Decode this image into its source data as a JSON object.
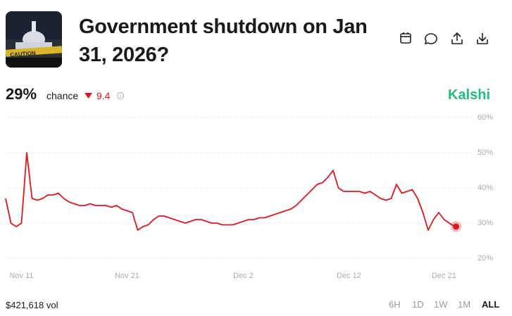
{
  "header": {
    "title": "Government shutdown on Jan 31, 2026?"
  },
  "stats": {
    "chance": "29%",
    "chance_text": "chance",
    "change": 9.4,
    "source": "Kalshi"
  },
  "footer": {
    "volume": "$421,618 vol",
    "ranges": [
      "6H",
      "1D",
      "1W",
      "1M",
      "ALL"
    ]
  },
  "chart_data": {
    "type": "line",
    "color": "#e0161d",
    "categories": [
      null,
      null,
      null,
      "Nov 11",
      null,
      null,
      null,
      null,
      null,
      null,
      null,
      null,
      null,
      null,
      null,
      null,
      null,
      null,
      null,
      null,
      null,
      null,
      null,
      "Nov 21",
      null,
      null,
      null,
      null,
      null,
      null,
      null,
      null,
      null,
      null,
      null,
      null,
      null,
      null,
      null,
      null,
      null,
      null,
      null,
      null,
      null,
      "Dec 2",
      null,
      null,
      null,
      null,
      null,
      null,
      null,
      null,
      null,
      null,
      null,
      null,
      null,
      null,
      null,
      null,
      null,
      null,
      null,
      "Dec 12",
      null,
      null,
      null,
      null,
      null,
      null,
      null,
      null,
      null,
      null,
      null,
      null,
      null,
      null,
      null,
      null,
      null,
      "Dec 21",
      null,
      null
    ],
    "values": [
      37,
      30,
      29,
      30,
      50,
      37,
      36.5,
      37,
      38,
      38,
      38.5,
      37,
      36,
      35.5,
      35,
      35,
      35.5,
      35,
      35,
      35,
      34.5,
      35,
      34,
      33.5,
      33,
      28,
      29,
      29.5,
      31,
      32,
      32,
      31.5,
      31,
      30.5,
      30,
      30.5,
      31,
      31,
      30.5,
      30,
      30,
      29.5,
      29.5,
      29.5,
      30,
      30.5,
      31,
      31,
      31.5,
      31.5,
      32,
      32.5,
      33,
      33.5,
      34,
      35,
      36.5,
      38,
      39.5,
      41,
      41.5,
      43,
      45,
      40,
      39,
      39,
      39,
      39,
      38.5,
      39,
      38,
      37,
      36.5,
      37,
      41,
      38.5,
      39,
      39.5,
      37,
      33,
      28,
      31,
      33,
      31,
      30,
      29
    ],
    "ylim": [
      20,
      60
    ],
    "yticks": [
      {
        "value": 60,
        "label": "60%"
      },
      {
        "value": 50,
        "label": "50%"
      },
      {
        "value": 40,
        "label": "40%"
      },
      {
        "value": 30,
        "label": "30%"
      },
      {
        "value": 20,
        "label": "20%"
      }
    ],
    "grid": true
  }
}
